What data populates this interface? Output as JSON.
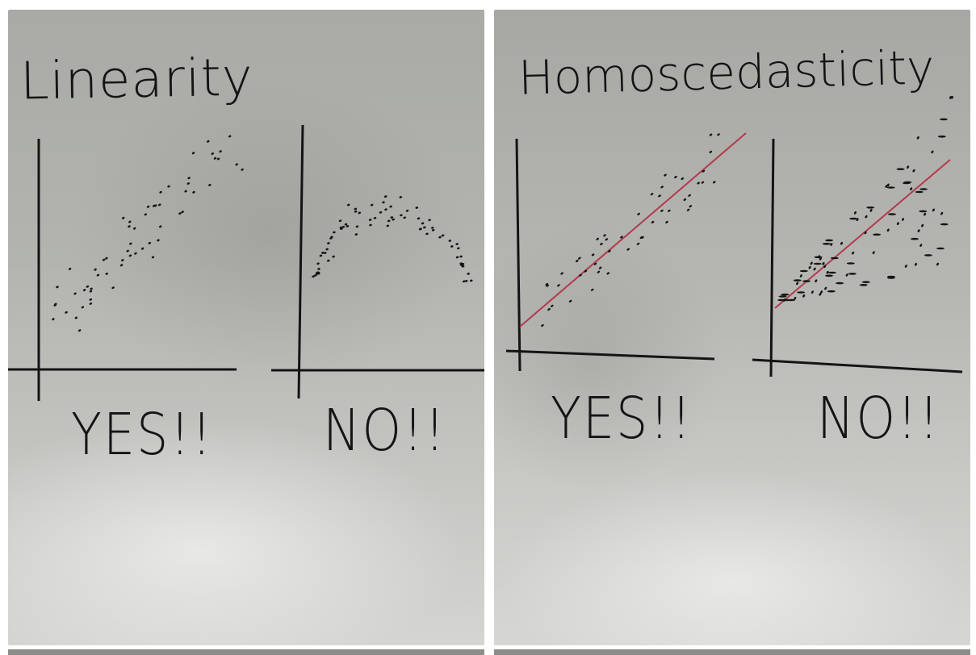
{
  "left_panel": {
    "title": "Linearity",
    "label_yes": "YES!!",
    "label_no": "NO!!"
  },
  "right_panel": {
    "title": "Homoscedasticity",
    "label_yes": "YES!!",
    "label_no": "NO!!"
  },
  "colors": {
    "ink": "#141414",
    "fit_line": "#b23a4e"
  }
}
